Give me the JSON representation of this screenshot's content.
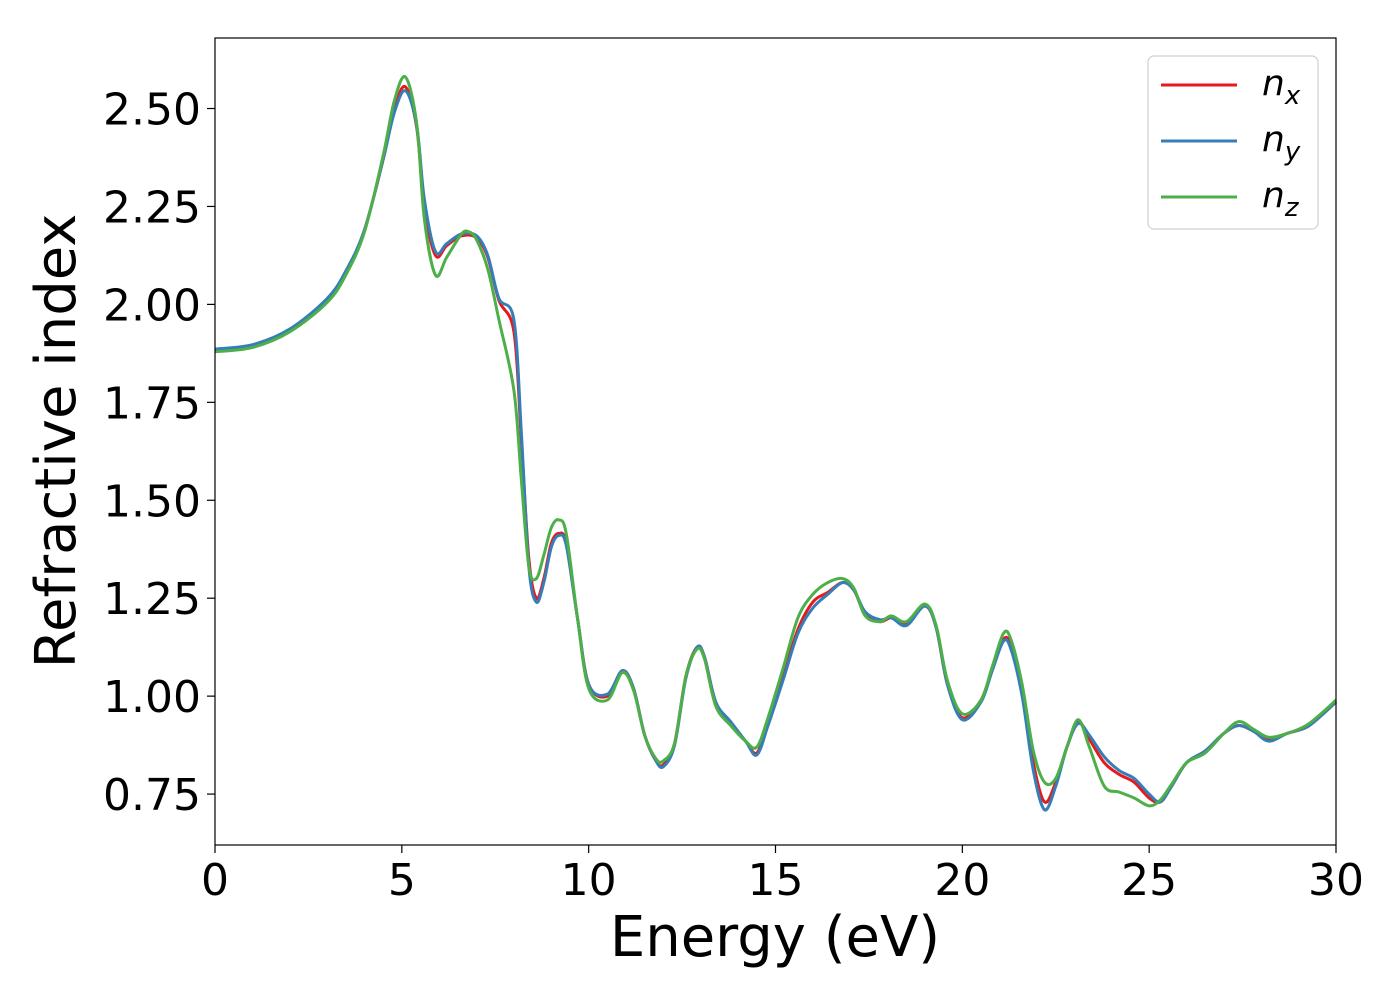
{
  "chart_data": {
    "type": "line",
    "xlabel": "Energy (eV)",
    "ylabel": "Refractive index",
    "xlim": [
      0,
      30
    ],
    "ylim": [
      0.62,
      2.68
    ],
    "xticks": [
      "0",
      "5",
      "10",
      "15",
      "20",
      "25",
      "30"
    ],
    "yticks": [
      "0.75",
      "1.00",
      "1.25",
      "1.50",
      "1.75",
      "2.00",
      "2.25",
      "2.50"
    ],
    "grid": false,
    "legend_position": "top-right",
    "series": [
      {
        "name": "n",
        "subscript": "x",
        "color": "#e41a1c",
        "points": [
          [
            0,
            1.884
          ],
          [
            1,
            1.895
          ],
          [
            2,
            1.935
          ],
          [
            3,
            2.01
          ],
          [
            3.5,
            2.08
          ],
          [
            4,
            2.19
          ],
          [
            4.5,
            2.37
          ],
          [
            4.8,
            2.5
          ],
          [
            5.1,
            2.555
          ],
          [
            5.4,
            2.45
          ],
          [
            5.6,
            2.25
          ],
          [
            5.9,
            2.125
          ],
          [
            6.2,
            2.15
          ],
          [
            6.6,
            2.175
          ],
          [
            7,
            2.17
          ],
          [
            7.3,
            2.12
          ],
          [
            7.6,
            2.01
          ],
          [
            8,
            1.93
          ],
          [
            8.2,
            1.65
          ],
          [
            8.4,
            1.35
          ],
          [
            8.6,
            1.25
          ],
          [
            8.8,
            1.3
          ],
          [
            9,
            1.39
          ],
          [
            9.2,
            1.415
          ],
          [
            9.4,
            1.39
          ],
          [
            9.7,
            1.2
          ],
          [
            10,
            1.03
          ],
          [
            10.5,
            1.0
          ],
          [
            10.9,
            1.065
          ],
          [
            11.2,
            1.02
          ],
          [
            11.5,
            0.9
          ],
          [
            11.8,
            0.835
          ],
          [
            12,
            0.825
          ],
          [
            12.3,
            0.88
          ],
          [
            12.6,
            1.05
          ],
          [
            12.9,
            1.125
          ],
          [
            13.1,
            1.1
          ],
          [
            13.4,
            0.985
          ],
          [
            13.8,
            0.93
          ],
          [
            14.2,
            0.885
          ],
          [
            14.5,
            0.855
          ],
          [
            14.8,
            0.93
          ],
          [
            15.2,
            1.05
          ],
          [
            15.6,
            1.17
          ],
          [
            16,
            1.24
          ],
          [
            16.4,
            1.265
          ],
          [
            16.8,
            1.29
          ],
          [
            17.1,
            1.27
          ],
          [
            17.4,
            1.21
          ],
          [
            17.8,
            1.19
          ],
          [
            18.1,
            1.2
          ],
          [
            18.5,
            1.185
          ],
          [
            19,
            1.23
          ],
          [
            19.3,
            1.175
          ],
          [
            19.6,
            1.03
          ],
          [
            20,
            0.945
          ],
          [
            20.5,
            0.99
          ],
          [
            20.8,
            1.07
          ],
          [
            21.1,
            1.145
          ],
          [
            21.3,
            1.13
          ],
          [
            21.6,
            1.02
          ],
          [
            21.9,
            0.83
          ],
          [
            22.2,
            0.73
          ],
          [
            22.5,
            0.78
          ],
          [
            22.8,
            0.87
          ],
          [
            23.1,
            0.935
          ],
          [
            23.4,
            0.89
          ],
          [
            23.8,
            0.83
          ],
          [
            24.2,
            0.8
          ],
          [
            24.6,
            0.78
          ],
          [
            25,
            0.74
          ],
          [
            25.3,
            0.73
          ],
          [
            25.6,
            0.77
          ],
          [
            26,
            0.83
          ],
          [
            26.5,
            0.86
          ],
          [
            27,
            0.905
          ],
          [
            27.4,
            0.925
          ],
          [
            27.8,
            0.91
          ],
          [
            28.2,
            0.89
          ],
          [
            28.7,
            0.905
          ],
          [
            29.2,
            0.92
          ],
          [
            29.6,
            0.95
          ],
          [
            30,
            0.985
          ]
        ]
      },
      {
        "name": "n",
        "subscript": "y",
        "color": "#377eb8",
        "points": [
          [
            0,
            1.886
          ],
          [
            1,
            1.897
          ],
          [
            2,
            1.937
          ],
          [
            3,
            2.015
          ],
          [
            3.5,
            2.085
          ],
          [
            4,
            2.19
          ],
          [
            4.5,
            2.37
          ],
          [
            4.8,
            2.49
          ],
          [
            5.1,
            2.545
          ],
          [
            5.4,
            2.455
          ],
          [
            5.6,
            2.27
          ],
          [
            5.9,
            2.135
          ],
          [
            6.2,
            2.155
          ],
          [
            6.6,
            2.18
          ],
          [
            7,
            2.175
          ],
          [
            7.3,
            2.125
          ],
          [
            7.6,
            2.015
          ],
          [
            8,
            1.96
          ],
          [
            8.2,
            1.67
          ],
          [
            8.4,
            1.33
          ],
          [
            8.6,
            1.24
          ],
          [
            8.8,
            1.29
          ],
          [
            9,
            1.38
          ],
          [
            9.2,
            1.41
          ],
          [
            9.4,
            1.385
          ],
          [
            9.7,
            1.2
          ],
          [
            10,
            1.03
          ],
          [
            10.5,
            1.005
          ],
          [
            10.9,
            1.065
          ],
          [
            11.2,
            1.02
          ],
          [
            11.5,
            0.9
          ],
          [
            11.8,
            0.835
          ],
          [
            12,
            0.82
          ],
          [
            12.3,
            0.875
          ],
          [
            12.6,
            1.045
          ],
          [
            12.9,
            1.125
          ],
          [
            13.1,
            1.1
          ],
          [
            13.4,
            0.985
          ],
          [
            13.8,
            0.935
          ],
          [
            14.2,
            0.885
          ],
          [
            14.5,
            0.85
          ],
          [
            14.8,
            0.925
          ],
          [
            15.2,
            1.04
          ],
          [
            15.6,
            1.16
          ],
          [
            16,
            1.225
          ],
          [
            16.4,
            1.26
          ],
          [
            16.8,
            1.29
          ],
          [
            17.1,
            1.27
          ],
          [
            17.4,
            1.215
          ],
          [
            17.8,
            1.195
          ],
          [
            18.1,
            1.2
          ],
          [
            18.5,
            1.18
          ],
          [
            19,
            1.23
          ],
          [
            19.3,
            1.175
          ],
          [
            19.6,
            1.03
          ],
          [
            20,
            0.94
          ],
          [
            20.5,
            0.985
          ],
          [
            20.8,
            1.065
          ],
          [
            21.1,
            1.14
          ],
          [
            21.3,
            1.12
          ],
          [
            21.6,
            1.0
          ],
          [
            21.9,
            0.81
          ],
          [
            22.2,
            0.71
          ],
          [
            22.5,
            0.77
          ],
          [
            22.8,
            0.87
          ],
          [
            23.1,
            0.93
          ],
          [
            23.4,
            0.9
          ],
          [
            23.8,
            0.845
          ],
          [
            24.2,
            0.81
          ],
          [
            24.6,
            0.79
          ],
          [
            25,
            0.75
          ],
          [
            25.3,
            0.73
          ],
          [
            25.6,
            0.77
          ],
          [
            26,
            0.83
          ],
          [
            26.5,
            0.86
          ],
          [
            27,
            0.905
          ],
          [
            27.4,
            0.925
          ],
          [
            27.8,
            0.91
          ],
          [
            28.2,
            0.885
          ],
          [
            28.7,
            0.905
          ],
          [
            29.2,
            0.92
          ],
          [
            29.6,
            0.95
          ],
          [
            30,
            0.985
          ]
        ]
      },
      {
        "name": "n",
        "subscript": "z",
        "color": "#4daf4a",
        "points": [
          [
            0,
            1.879
          ],
          [
            1,
            1.89
          ],
          [
            2,
            1.93
          ],
          [
            3,
            2.005
          ],
          [
            3.5,
            2.075
          ],
          [
            4,
            2.185
          ],
          [
            4.5,
            2.38
          ],
          [
            4.8,
            2.52
          ],
          [
            5.1,
            2.58
          ],
          [
            5.4,
            2.46
          ],
          [
            5.6,
            2.22
          ],
          [
            5.9,
            2.075
          ],
          [
            6.2,
            2.12
          ],
          [
            6.6,
            2.18
          ],
          [
            6.8,
            2.185
          ],
          [
            7,
            2.165
          ],
          [
            7.3,
            2.09
          ],
          [
            7.6,
            1.96
          ],
          [
            8,
            1.78
          ],
          [
            8.2,
            1.55
          ],
          [
            8.4,
            1.33
          ],
          [
            8.6,
            1.3
          ],
          [
            8.8,
            1.36
          ],
          [
            9,
            1.43
          ],
          [
            9.2,
            1.45
          ],
          [
            9.4,
            1.415
          ],
          [
            9.7,
            1.2
          ],
          [
            10,
            1.02
          ],
          [
            10.5,
            0.99
          ],
          [
            10.9,
            1.06
          ],
          [
            11.2,
            1.015
          ],
          [
            11.5,
            0.9
          ],
          [
            11.8,
            0.84
          ],
          [
            12,
            0.835
          ],
          [
            12.3,
            0.88
          ],
          [
            12.6,
            1.05
          ],
          [
            12.9,
            1.12
          ],
          [
            13.1,
            1.095
          ],
          [
            13.4,
            0.975
          ],
          [
            13.8,
            0.925
          ],
          [
            14.2,
            0.885
          ],
          [
            14.5,
            0.87
          ],
          [
            14.8,
            0.945
          ],
          [
            15.2,
            1.07
          ],
          [
            15.6,
            1.2
          ],
          [
            16,
            1.26
          ],
          [
            16.4,
            1.29
          ],
          [
            16.8,
            1.3
          ],
          [
            17.1,
            1.275
          ],
          [
            17.4,
            1.205
          ],
          [
            17.8,
            1.19
          ],
          [
            18.1,
            1.205
          ],
          [
            18.5,
            1.19
          ],
          [
            19,
            1.235
          ],
          [
            19.3,
            1.18
          ],
          [
            19.6,
            1.04
          ],
          [
            20,
            0.955
          ],
          [
            20.5,
            0.99
          ],
          [
            20.8,
            1.075
          ],
          [
            21.1,
            1.16
          ],
          [
            21.3,
            1.145
          ],
          [
            21.6,
            1.03
          ],
          [
            21.9,
            0.86
          ],
          [
            22.2,
            0.78
          ],
          [
            22.5,
            0.79
          ],
          [
            22.8,
            0.87
          ],
          [
            23.1,
            0.94
          ],
          [
            23.4,
            0.87
          ],
          [
            23.8,
            0.77
          ],
          [
            24.2,
            0.755
          ],
          [
            24.6,
            0.74
          ],
          [
            25,
            0.72
          ],
          [
            25.3,
            0.735
          ],
          [
            25.6,
            0.775
          ],
          [
            26,
            0.83
          ],
          [
            26.5,
            0.855
          ],
          [
            27,
            0.905
          ],
          [
            27.4,
            0.935
          ],
          [
            27.8,
            0.915
          ],
          [
            28.2,
            0.895
          ],
          [
            28.7,
            0.905
          ],
          [
            29.2,
            0.925
          ],
          [
            29.6,
            0.955
          ],
          [
            30,
            0.99
          ]
        ]
      }
    ]
  }
}
